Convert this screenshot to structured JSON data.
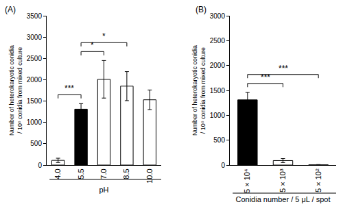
{
  "chart_data": [
    {
      "type": "bar",
      "title": "(A)",
      "x_label": "pH",
      "y_label": "Number of heterokaryotic conidia\n/ 10⁶ conidia from mixed culture",
      "categories": [
        "4.0",
        "5.5",
        "7.0",
        "8.5",
        "10.0"
      ],
      "values": [
        110,
        1310,
        2010,
        1850,
        1530
      ],
      "errors": [
        50,
        130,
        440,
        340,
        230
      ],
      "colors": [
        "#ffffff",
        "#000000",
        "#ffffff",
        "#ffffff",
        "#ffffff"
      ],
      "ylim": [
        0,
        3500
      ],
      "yticks": [
        0,
        500,
        1000,
        1500,
        2000,
        2500,
        3000,
        3500
      ],
      "grid": false,
      "annotations": [
        {
          "from": "4.0",
          "to": "5.5",
          "label": "***"
        },
        {
          "from": "5.5",
          "to": "7.0",
          "label": "*"
        },
        {
          "from": "5.5",
          "to": "8.5",
          "label": "*"
        }
      ]
    },
    {
      "type": "bar",
      "title": "(B)",
      "x_label": "Conidia number / 5 μL / spot",
      "y_label": "Number of heterokaryotic conidia\n/ 10⁶ conidia from mixed culture",
      "categories": [
        "5 × 10⁴",
        "5 × 10³",
        "5 × 10²"
      ],
      "values": [
        1310,
        90,
        5
      ],
      "errors": [
        150,
        40,
        5
      ],
      "colors": [
        "#000000",
        "#ffffff",
        "#ffffff"
      ],
      "ylim": [
        0,
        3000
      ],
      "yticks": [
        0,
        500,
        1000,
        1500,
        2000,
        2500,
        3000
      ],
      "grid": false,
      "annotations": [
        {
          "from": "5 × 10⁴",
          "to": "5 × 10³",
          "label": "***"
        },
        {
          "from": "5 × 10⁴",
          "to": "5 × 10²",
          "label": "***"
        }
      ]
    }
  ]
}
